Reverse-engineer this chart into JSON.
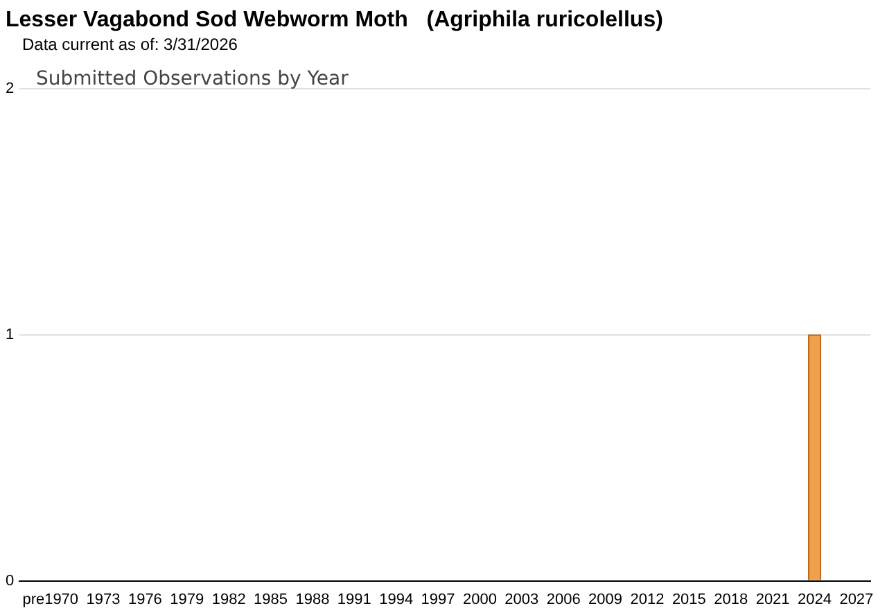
{
  "chart_data": {
    "type": "bar",
    "title": "Lesser Vagabond Sod Webworm Moth   (Agriphila ruricolellus)",
    "subtitle": "Data current as of: 3/31/2026",
    "annotations": [
      "Submitted Observations by Year"
    ],
    "x": [
      2024
    ],
    "values": [
      1
    ],
    "color": "#f0a04b",
    "xlim": [
      1967,
      2028
    ],
    "xticks": [
      {
        "value": 1968,
        "label": "pre"
      },
      1970,
      1973,
      1976,
      1979,
      1982,
      1985,
      1988,
      1991,
      1994,
      1997,
      2000,
      2003,
      2006,
      2009,
      2012,
      2015,
      2018,
      2021,
      2024,
      2027
    ],
    "ylim": [
      0,
      2
    ],
    "yticks": [
      0,
      1,
      2
    ],
    "grid": "y",
    "legend": false
  }
}
